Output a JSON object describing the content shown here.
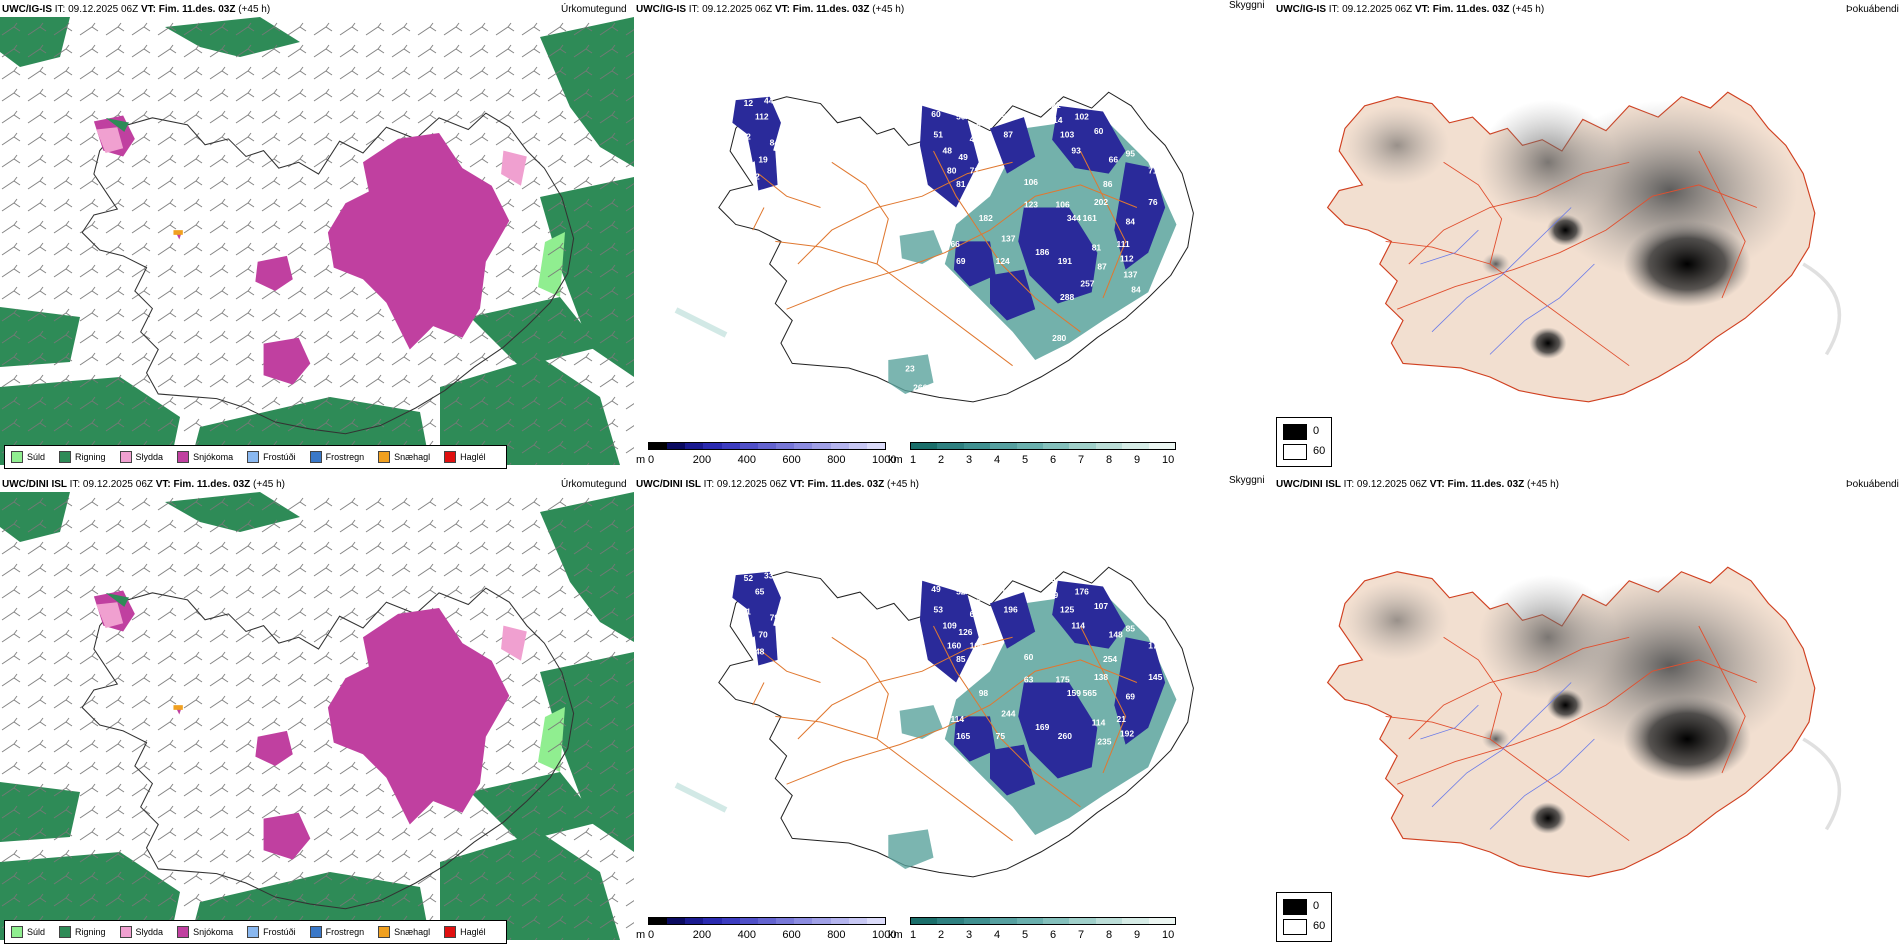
{
  "rows": [
    {
      "model": "UWC/IG-IS",
      "it_label": "IT:",
      "it_value": "09.12.2025 06Z",
      "vt_label": "VT:",
      "vt_value": "Fim. 11.des. 03Z",
      "lead": "(+45 h)",
      "titles": {
        "precip": "Úrkomutegund",
        "visibility": "Skyggni",
        "fog": "Þokuábendi"
      },
      "depth_labels": [
        "12",
        "44",
        "112",
        "72",
        "84",
        "19",
        "2",
        "60",
        "50",
        "41",
        "51",
        "43",
        "48",
        "49",
        "80",
        "71",
        "69",
        "81",
        "55",
        "87",
        "121",
        "114",
        "102",
        "103",
        "60",
        "95",
        "93",
        "66",
        "71",
        "106",
        "86",
        "202",
        "123",
        "106",
        "344",
        "161",
        "76",
        "84",
        "182",
        "137",
        "66",
        "69",
        "124",
        "186",
        "191",
        "81",
        "87",
        "111",
        "112",
        "137",
        "257",
        "84",
        "288",
        "280",
        "23",
        "266"
      ]
    },
    {
      "model": "UWC/DINI ISL",
      "it_label": "IT:",
      "it_value": "09.12.2025 06Z",
      "vt_label": "VT:",
      "vt_value": "Fim. 11.des. 03Z",
      "lead": "(+45 h)",
      "titles": {
        "precip": "Úrkomutegund",
        "visibility": "Skyggni",
        "fog": "Þokuábendi"
      },
      "depth_labels": [
        "52",
        "33",
        "65",
        "61",
        "79",
        "70",
        "48",
        "49",
        "52",
        "52",
        "53",
        "63",
        "109",
        "126",
        "160",
        "106",
        "50",
        "85",
        "125",
        "196",
        "84",
        "79",
        "176",
        "125",
        "107",
        "85",
        "114",
        "148",
        "170",
        "60",
        "254",
        "138",
        "63",
        "175",
        "159",
        "565",
        "145",
        "69",
        "98",
        "244",
        "114",
        "165",
        "75",
        "169",
        "260",
        "114",
        "235",
        "21",
        "192"
      ]
    }
  ],
  "precip_legend": [
    {
      "label": "Súld",
      "color": "#90ee90"
    },
    {
      "label": "Rigning",
      "color": "#2e8b57"
    },
    {
      "label": "Slydda",
      "color": "#f0a0d0"
    },
    {
      "label": "Snjókoma",
      "color": "#c040a0"
    },
    {
      "label": "Frostúði",
      "color": "#8ab8f0"
    },
    {
      "label": "Frostregn",
      "color": "#3a78c8"
    },
    {
      "label": "Snæhagl",
      "color": "#f0a020"
    },
    {
      "label": "Haglél",
      "color": "#e01010"
    }
  ],
  "depth_scale": {
    "unit": "m",
    "ticks": [
      "0",
      "200",
      "400",
      "600",
      "800",
      "1000"
    ],
    "colors": [
      "#000000",
      "#0a0a60",
      "#1a1a90",
      "#2a2ab0",
      "#3c3cc0",
      "#5050c8",
      "#6464d0",
      "#7878d8",
      "#8c8ce0",
      "#a0a0e6",
      "#b4b4ee",
      "#c8c8f4",
      "#dcdcfa"
    ]
  },
  "vis_scale": {
    "unit": "km",
    "ticks": [
      "1",
      "2",
      "3",
      "4",
      "5",
      "6",
      "7",
      "8",
      "9",
      "10"
    ],
    "colors": [
      "#1a6e6a",
      "#2e8080",
      "#3f9090",
      "#56a0a0",
      "#6ab0ae",
      "#84c0bc",
      "#a0d0ca",
      "#bcded8",
      "#d6ece6",
      "#ecf6f2"
    ]
  },
  "fog_legend": [
    {
      "label": "0",
      "color": "#000000"
    },
    {
      "label": "60",
      "color": "#ffffff"
    }
  ],
  "colors": {
    "rain": "#2e8b57",
    "snow": "#c040a0",
    "drizzle": "#90ee90",
    "sleet": "#f0a0d0",
    "depth": "#2a2a9a",
    "vis": "#5aa39c",
    "road": "#e07830",
    "fogland": "#f2dfd0",
    "fogroad": "#e05030",
    "river": "#6a7ae8"
  }
}
